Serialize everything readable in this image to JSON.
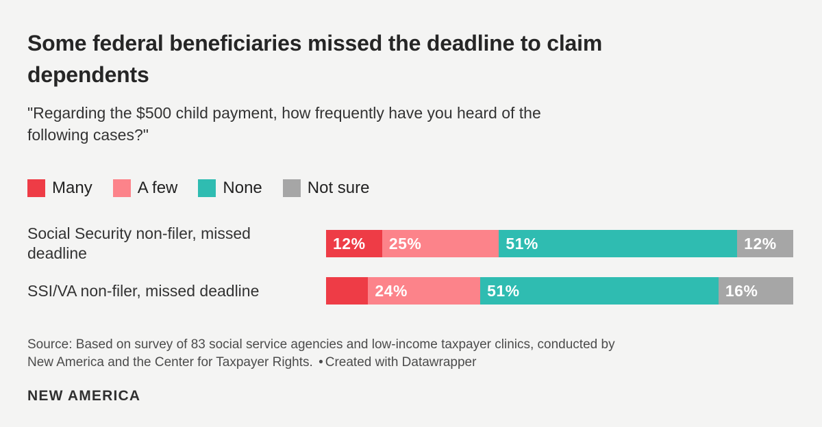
{
  "header": {
    "title": "Some federal beneficiaries missed the deadline to claim\ndependents",
    "subtitle": "\"Regarding the $500 child payment, how frequently have you heard of the\nfollowing cases?\""
  },
  "chart_data": {
    "type": "bar",
    "stacked": true,
    "orientation": "horizontal",
    "title": "Some federal beneficiaries missed the deadline to claim dependents",
    "subtitle": "\"Regarding the $500 child payment, how frequently have you heard of the following cases?\"",
    "legend_position": "top",
    "xlim": [
      0,
      100
    ],
    "grid": false,
    "legend": [
      {
        "label": "Many",
        "color": "#ee3c46"
      },
      {
        "label": "A few",
        "color": "#fc838a"
      },
      {
        "label": "None",
        "color": "#2fbcb1"
      },
      {
        "label": "Not sure",
        "color": "#a6a6a6"
      }
    ],
    "categories": [
      "Social Security non-filer, missed\ndeadline",
      "SSI/VA non-filer, missed deadline"
    ],
    "series": [
      {
        "name": "Many",
        "values": [
          12,
          9
        ]
      },
      {
        "name": "A few",
        "values": [
          25,
          24
        ]
      },
      {
        "name": "None",
        "values": [
          51,
          51
        ]
      },
      {
        "name": "Not sure",
        "values": [
          12,
          16
        ]
      }
    ],
    "value_labels": [
      [
        "12%",
        "25%",
        "51%",
        "12%"
      ],
      [
        "",
        "24%",
        "51%",
        "16%"
      ]
    ]
  },
  "footer": {
    "source_label": "Source:",
    "source_text": "Based on survey of 83 social service agencies and low-income taxpayer clinics, conducted by\nNew America and the Center for Taxpayer Rights.",
    "separator": "•",
    "attribution": "Created with Datawrapper",
    "logo": "NEW AMERICA"
  },
  "colors": {
    "background": "#f4f4f3",
    "title_text": "#262626",
    "body_text": "#333333",
    "source_text": "#4b4b4b",
    "bar_value_text": "#ffffff"
  }
}
